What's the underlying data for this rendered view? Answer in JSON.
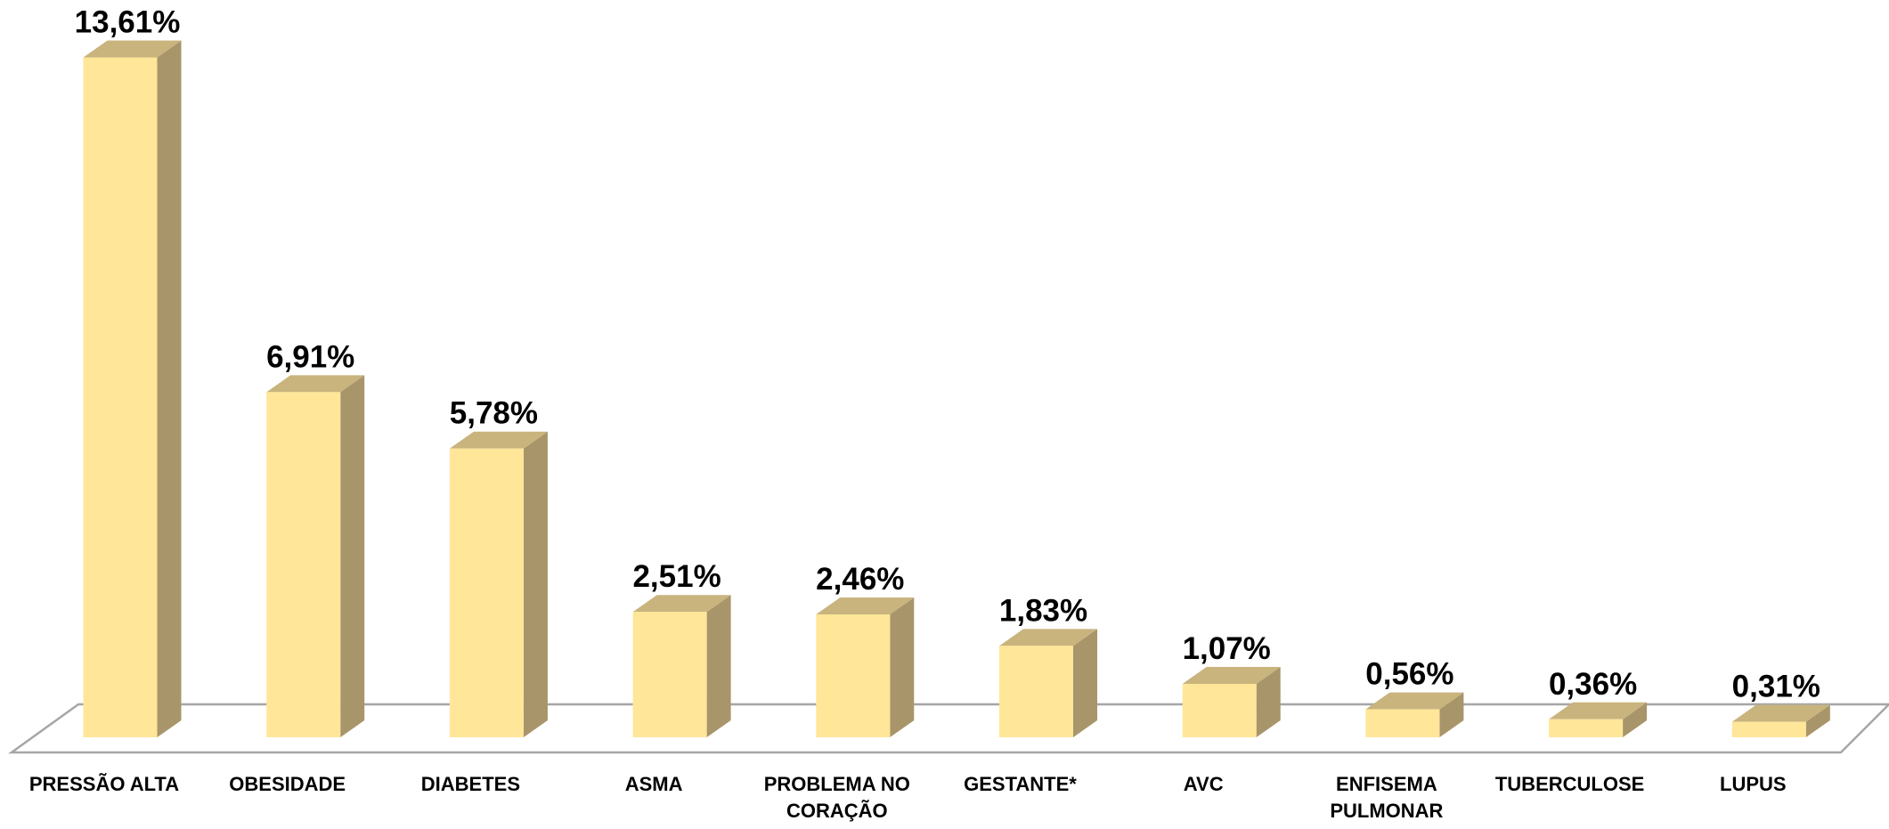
{
  "chart_data": {
    "type": "bar",
    "categories": [
      "PRESSÃO ALTA",
      "OBESIDADE",
      "DIABETES",
      "ASMA",
      "PROBLEMA NO CORAÇÃO",
      "GESTANTE*",
      "AVC",
      "ENFISEMA PULMONAR",
      "TUBERCULOSE",
      "LUPUS"
    ],
    "values": [
      13.61,
      6.91,
      5.78,
      2.51,
      2.46,
      1.83,
      1.07,
      0.56,
      0.36,
      0.31
    ],
    "value_labels": [
      "13,61%",
      "6,91%",
      "5,78%",
      "2,51%",
      "2,46%",
      "1,83%",
      "1,07%",
      "0,56%",
      "0,36%",
      "0,31%"
    ],
    "color": "#FFE699"
  }
}
